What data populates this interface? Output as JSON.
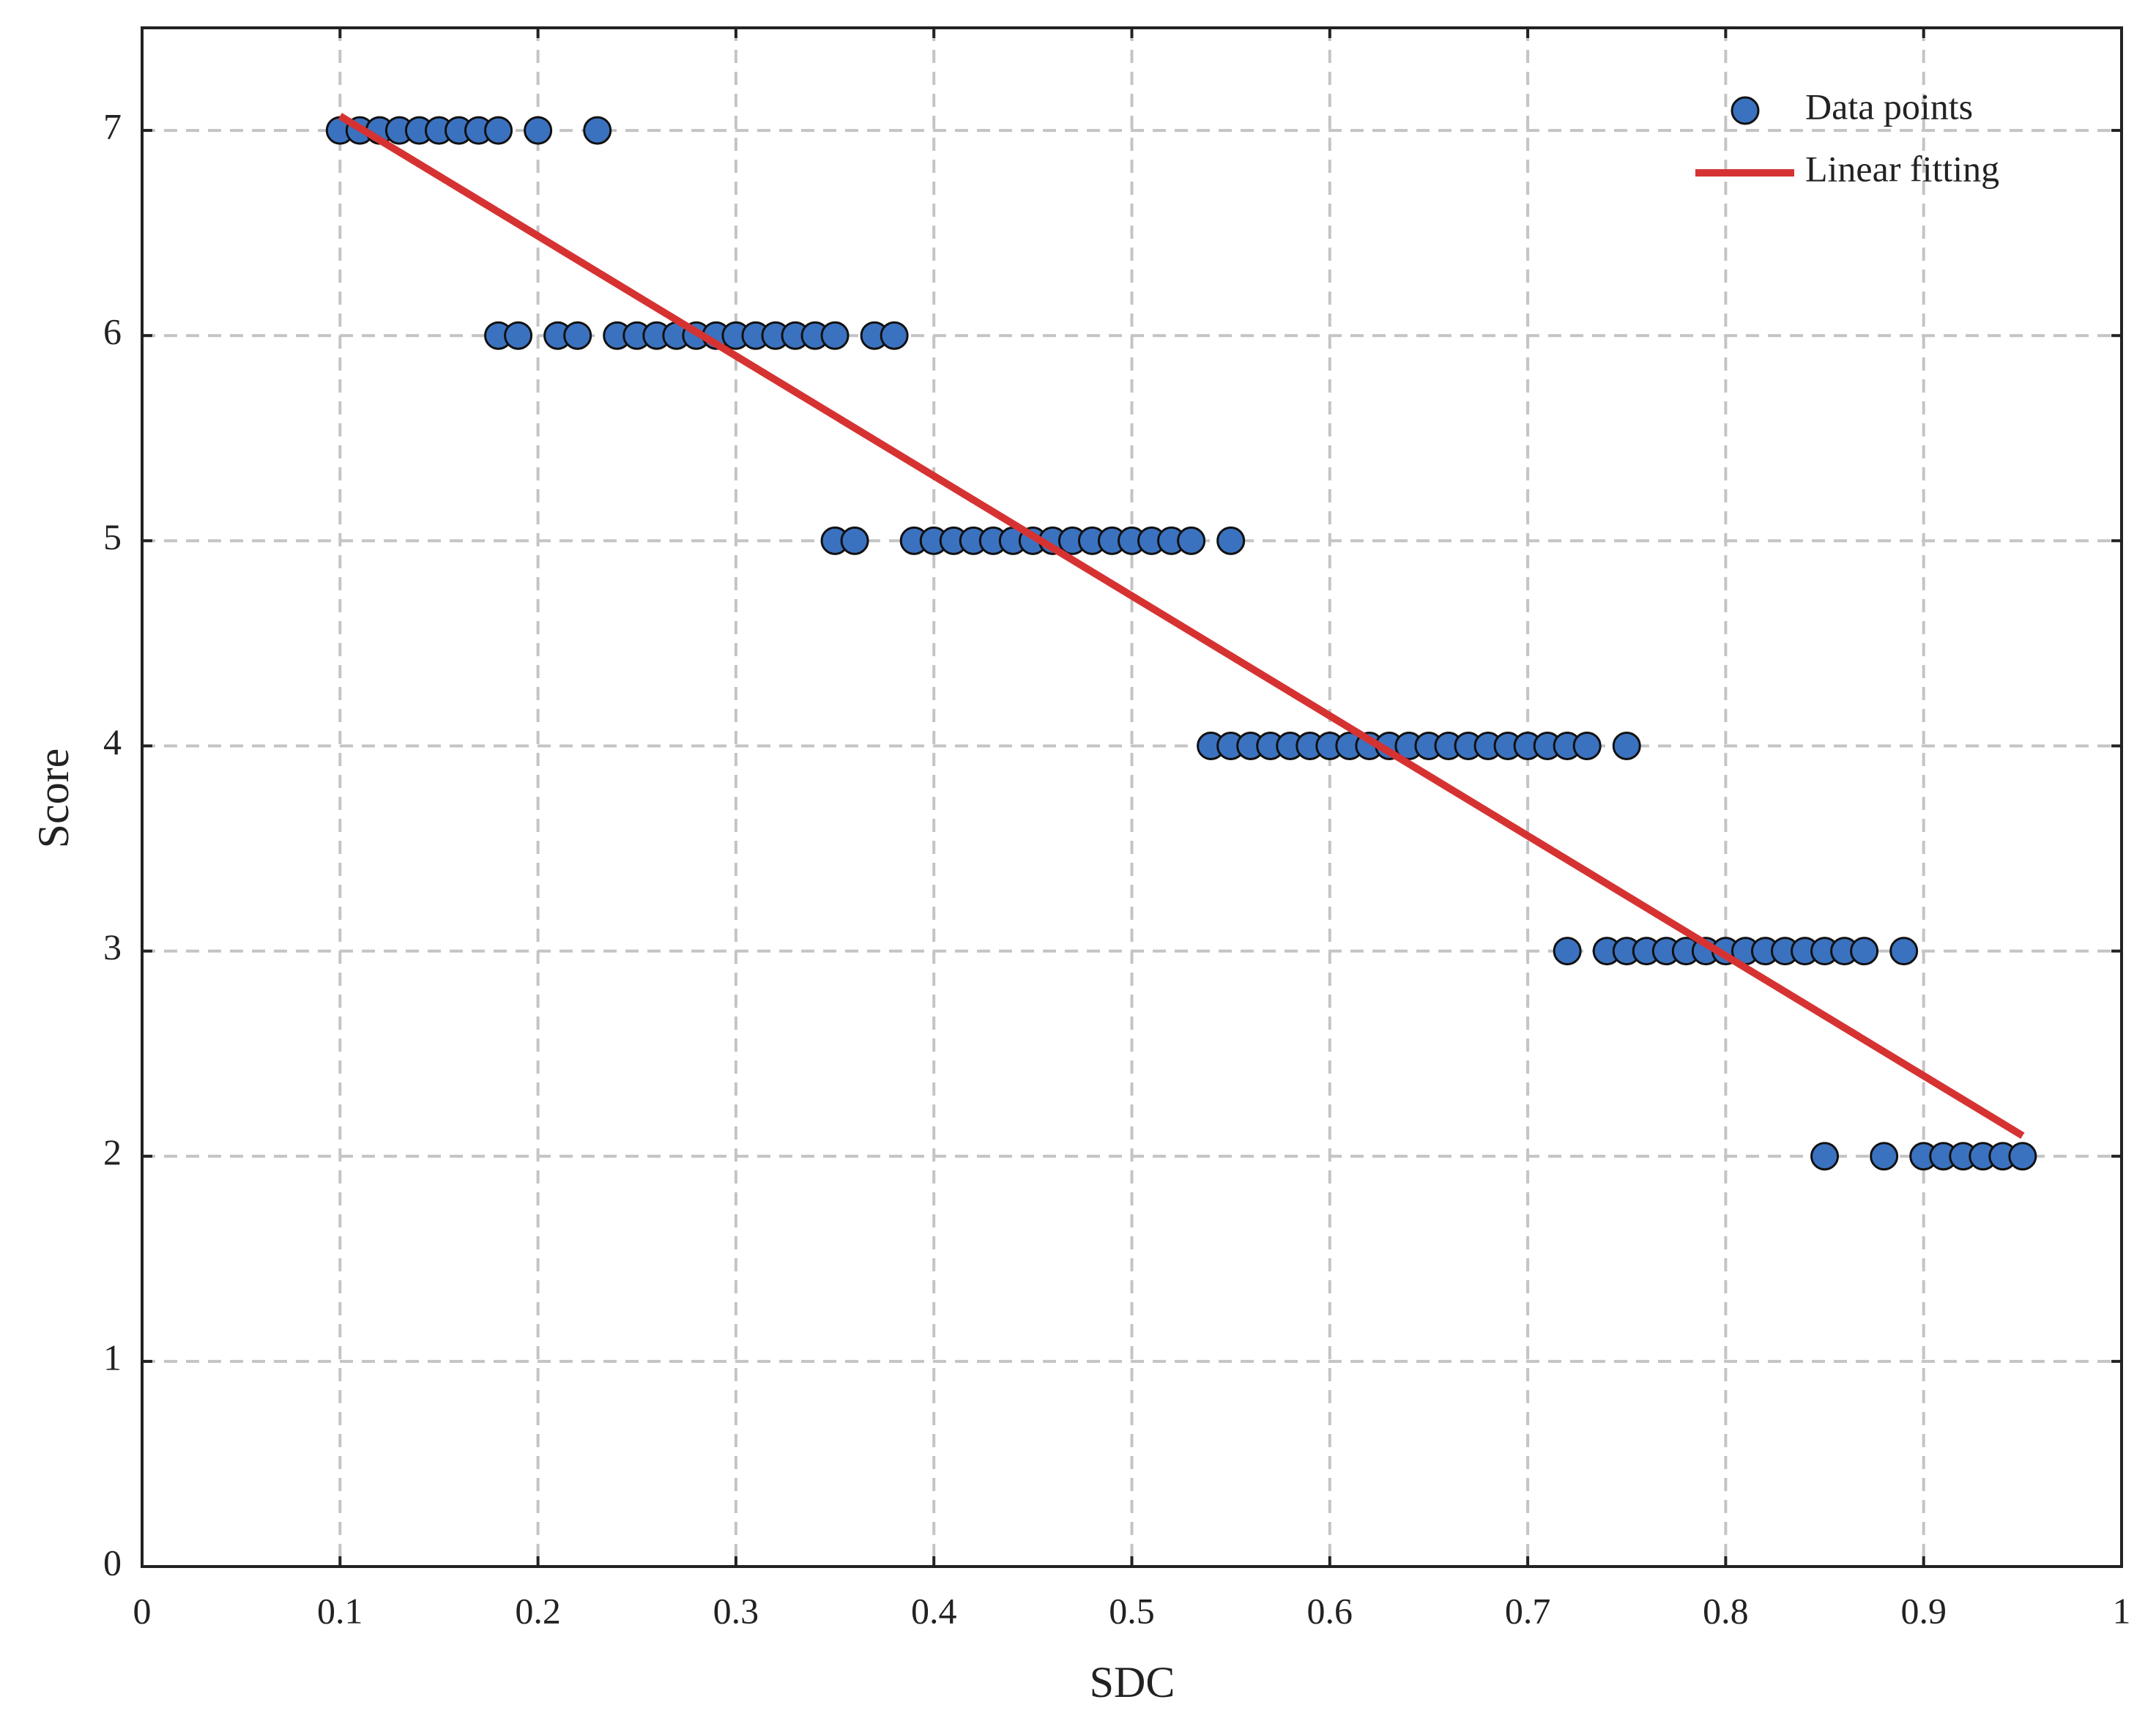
{
  "chart_data": {
    "type": "scatter",
    "x_label": "SDC",
    "y_label": "Score",
    "xlim": [
      0,
      1
    ],
    "ylim": [
      0,
      7.5
    ],
    "xticks": [
      0,
      0.1,
      0.2,
      0.3,
      0.4,
      0.5,
      0.6,
      0.7,
      0.8,
      0.9,
      1
    ],
    "yticks": [
      0,
      1,
      2,
      3,
      4,
      5,
      6,
      7
    ],
    "grid": true,
    "legend": "upper right",
    "series": [
      {
        "name": "Data points",
        "kind": "markers",
        "color": "#3b72c0",
        "x": [
          0.1,
          0.11,
          0.12,
          0.13,
          0.14,
          0.15,
          0.16,
          0.17,
          0.18,
          0.2,
          0.23,
          0.18,
          0.19,
          0.21,
          0.22,
          0.24,
          0.25,
          0.26,
          0.27,
          0.28,
          0.29,
          0.3,
          0.31,
          0.32,
          0.33,
          0.34,
          0.35,
          0.37,
          0.38,
          0.35,
          0.36,
          0.39,
          0.4,
          0.41,
          0.42,
          0.43,
          0.44,
          0.45,
          0.46,
          0.47,
          0.48,
          0.49,
          0.5,
          0.51,
          0.52,
          0.53,
          0.55,
          0.54,
          0.55,
          0.56,
          0.57,
          0.58,
          0.59,
          0.6,
          0.61,
          0.62,
          0.63,
          0.64,
          0.65,
          0.66,
          0.67,
          0.68,
          0.69,
          0.7,
          0.71,
          0.72,
          0.73,
          0.75,
          0.72,
          0.74,
          0.75,
          0.76,
          0.77,
          0.78,
          0.79,
          0.8,
          0.81,
          0.82,
          0.83,
          0.84,
          0.85,
          0.86,
          0.87,
          0.89,
          0.85,
          0.88,
          0.9,
          0.91,
          0.92,
          0.93,
          0.94,
          0.95
        ],
        "values": [
          7,
          7,
          7,
          7,
          7,
          7,
          7,
          7,
          7,
          7,
          7,
          6,
          6,
          6,
          6,
          6,
          6,
          6,
          6,
          6,
          6,
          6,
          6,
          6,
          6,
          6,
          6,
          6,
          6,
          5,
          5,
          5,
          5,
          5,
          5,
          5,
          5,
          5,
          5,
          5,
          5,
          5,
          5,
          5,
          5,
          5,
          5,
          4,
          4,
          4,
          4,
          4,
          4,
          4,
          4,
          4,
          4,
          4,
          4,
          4,
          4,
          4,
          4,
          4,
          4,
          4,
          4,
          4,
          3,
          3,
          3,
          3,
          3,
          3,
          3,
          3,
          3,
          3,
          3,
          3,
          3,
          3,
          3,
          3,
          2,
          2,
          2,
          2,
          2,
          2,
          2,
          2
        ]
      },
      {
        "name": "Linear fitting",
        "kind": "line",
        "color": "#d63232",
        "x": [
          0.1,
          0.95
        ],
        "values": [
          7.07,
          2.1
        ]
      }
    ]
  }
}
